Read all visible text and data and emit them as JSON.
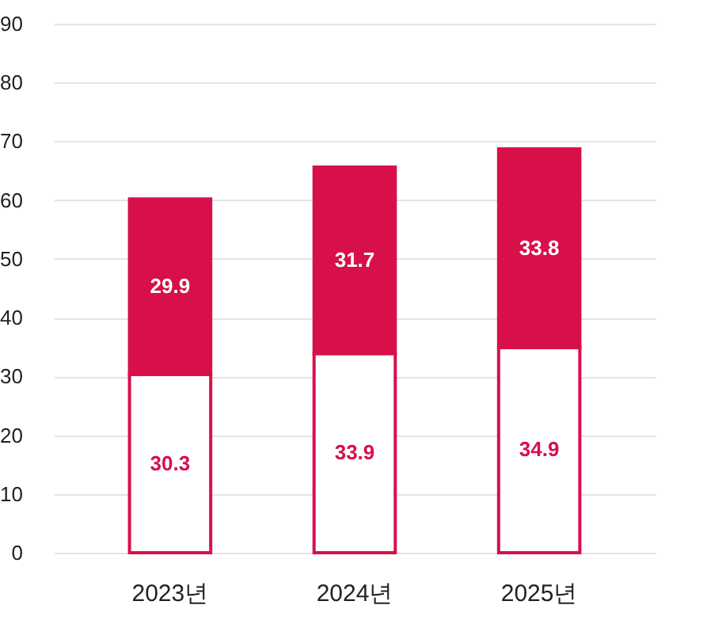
{
  "chart_data": {
    "type": "bar",
    "stacked": true,
    "categories": [
      "2023년",
      "2024년",
      "2025년"
    ],
    "series": [
      {
        "color": "#ffffff",
        "values": [
          30.3,
          33.9,
          34.9
        ]
      },
      {
        "color": "#d7104a",
        "values": [
          29.9,
          31.7,
          33.8
        ]
      }
    ],
    "ylim": [
      0,
      90
    ],
    "yticks": [
      0,
      10,
      20,
      30,
      40,
      50,
      60,
      70,
      80,
      90
    ],
    "grid": "y",
    "data_labels": true
  }
}
